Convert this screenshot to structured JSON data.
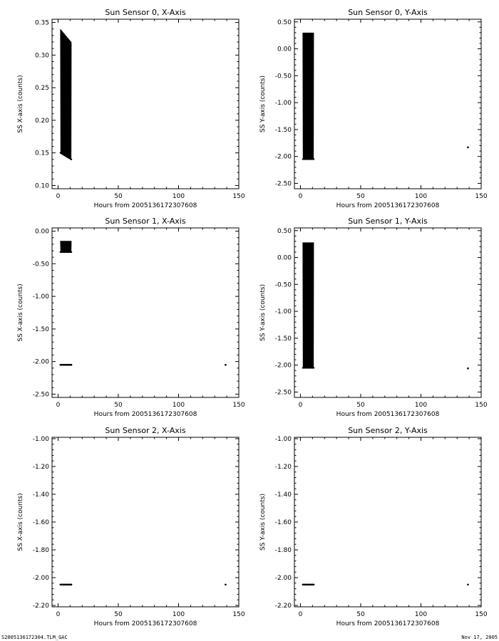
{
  "footer": {
    "file_name": "S2005136172304.TLM_GAC",
    "date": "Nov 17, 2005"
  },
  "colors": {
    "ink": "#000000",
    "background": "#ffffff"
  },
  "chart_data": [
    {
      "type": "scatter",
      "title": "Sun Sensor 0, X-Axis",
      "xlabel": "Hours from 2005136172307608",
      "ylabel": "SS X-axis (counts)",
      "xlim": [
        -5,
        150
      ],
      "ylim": [
        0.095,
        0.355
      ],
      "xticks": [
        "0",
        "50",
        "100",
        "150"
      ],
      "yticks": [
        "0.10",
        "0.15",
        "0.20",
        "0.25",
        "0.30",
        "0.35"
      ],
      "series": [
        {
          "bands": [
            {
              "x": [
                2,
                11
              ],
              "y_min": [
                0.15,
                0.14
              ],
              "y_max": [
                0.34,
                0.32
              ]
            }
          ],
          "points": []
        }
      ]
    },
    {
      "type": "scatter",
      "title": "Sun Sensor 0, Y-Axis",
      "xlabel": "Hours from 2005136172307608",
      "ylabel": "SS Y-axis (counts)",
      "xlim": [
        -5,
        150
      ],
      "ylim": [
        -2.6,
        0.55
      ],
      "xticks": [
        "0",
        "50",
        "100",
        "150"
      ],
      "yticks": [
        "0.50",
        "0.00",
        "-0.50",
        "-1.00",
        "-1.50",
        "-2.00",
        "-2.50"
      ],
      "series": [
        {
          "bands": [
            {
              "x": [
                2,
                11
              ],
              "y_min": [
                -2.05,
                -2.05
              ],
              "y_max": [
                0.3,
                0.3
              ]
            }
          ],
          "points": [
            [
              139,
              -1.83
            ]
          ]
        }
      ]
    },
    {
      "type": "scatter",
      "title": "Sun Sensor 1, X-Axis",
      "xlabel": "Hours from 2005136172307608",
      "ylabel": "SS X-axis (counts)",
      "xlim": [
        -5,
        150
      ],
      "ylim": [
        -2.55,
        0.05
      ],
      "xticks": [
        "0",
        "50",
        "100",
        "150"
      ],
      "yticks": [
        "0.00",
        "-0.50",
        "-1.00",
        "-1.50",
        "-2.00",
        "-2.50"
      ],
      "series": [
        {
          "bands": [
            {
              "x": [
                2,
                11
              ],
              "y_min": [
                -0.32,
                -0.32
              ],
              "y_max": [
                -0.15,
                -0.15
              ]
            }
          ],
          "points": [
            [
              2,
              -2.05
            ],
            [
              3,
              -2.05
            ],
            [
              4,
              -2.05
            ],
            [
              5,
              -2.05
            ],
            [
              6,
              -2.05
            ],
            [
              7,
              -2.05
            ],
            [
              8,
              -2.05
            ],
            [
              9,
              -2.05
            ],
            [
              10,
              -2.05
            ],
            [
              11,
              -2.05
            ],
            [
              139,
              -2.05
            ]
          ]
        }
      ]
    },
    {
      "type": "scatter",
      "title": "Sun Sensor 1, Y-Axis",
      "xlabel": "Hours from 2005136172307608",
      "ylabel": "SS Y-axis (counts)",
      "xlim": [
        -5,
        150
      ],
      "ylim": [
        -2.6,
        0.55
      ],
      "xticks": [
        "0",
        "50",
        "100",
        "150"
      ],
      "yticks": [
        "0.50",
        "0.00",
        "-0.50",
        "-1.00",
        "-1.50",
        "-2.00",
        "-2.50"
      ],
      "series": [
        {
          "bands": [
            {
              "x": [
                2,
                11
              ],
              "y_min": [
                -2.05,
                -2.05
              ],
              "y_max": [
                0.28,
                0.28
              ]
            }
          ],
          "points": [
            [
              139,
              -2.06
            ]
          ]
        }
      ]
    },
    {
      "type": "scatter",
      "title": "Sun Sensor 2, X-Axis",
      "xlabel": "Hours from 2005136172307608",
      "ylabel": "SS X-axis (counts)",
      "xlim": [
        -5,
        150
      ],
      "ylim": [
        -2.21,
        -0.99
      ],
      "xticks": [
        "0",
        "50",
        "100",
        "150"
      ],
      "yticks": [
        "-1.00",
        "-1.20",
        "-1.40",
        "-1.60",
        "-1.80",
        "-2.00",
        "-2.20"
      ],
      "series": [
        {
          "bands": [],
          "points": [
            [
              2,
              -2.05
            ],
            [
              3,
              -2.05
            ],
            [
              4,
              -2.05
            ],
            [
              5,
              -2.05
            ],
            [
              6,
              -2.05
            ],
            [
              7,
              -2.05
            ],
            [
              8,
              -2.05
            ],
            [
              9,
              -2.05
            ],
            [
              10,
              -2.05
            ],
            [
              11,
              -2.05
            ],
            [
              139,
              -2.05
            ]
          ]
        }
      ]
    },
    {
      "type": "scatter",
      "title": "Sun Sensor 2, Y-Axis",
      "xlabel": "Hours from 2005136172307608",
      "ylabel": "SS Y-axis (counts)",
      "xlim": [
        -5,
        150
      ],
      "ylim": [
        -2.21,
        -0.99
      ],
      "xticks": [
        "0",
        "50",
        "100",
        "150"
      ],
      "yticks": [
        "-1.00",
        "-1.20",
        "-1.40",
        "-1.60",
        "-1.80",
        "-2.00",
        "-2.20"
      ],
      "series": [
        {
          "bands": [],
          "points": [
            [
              2,
              -2.05
            ],
            [
              3,
              -2.05
            ],
            [
              4,
              -2.05
            ],
            [
              5,
              -2.05
            ],
            [
              6,
              -2.05
            ],
            [
              7,
              -2.05
            ],
            [
              8,
              -2.05
            ],
            [
              9,
              -2.05
            ],
            [
              10,
              -2.05
            ],
            [
              11,
              -2.05
            ],
            [
              139,
              -2.05
            ]
          ]
        }
      ]
    }
  ]
}
